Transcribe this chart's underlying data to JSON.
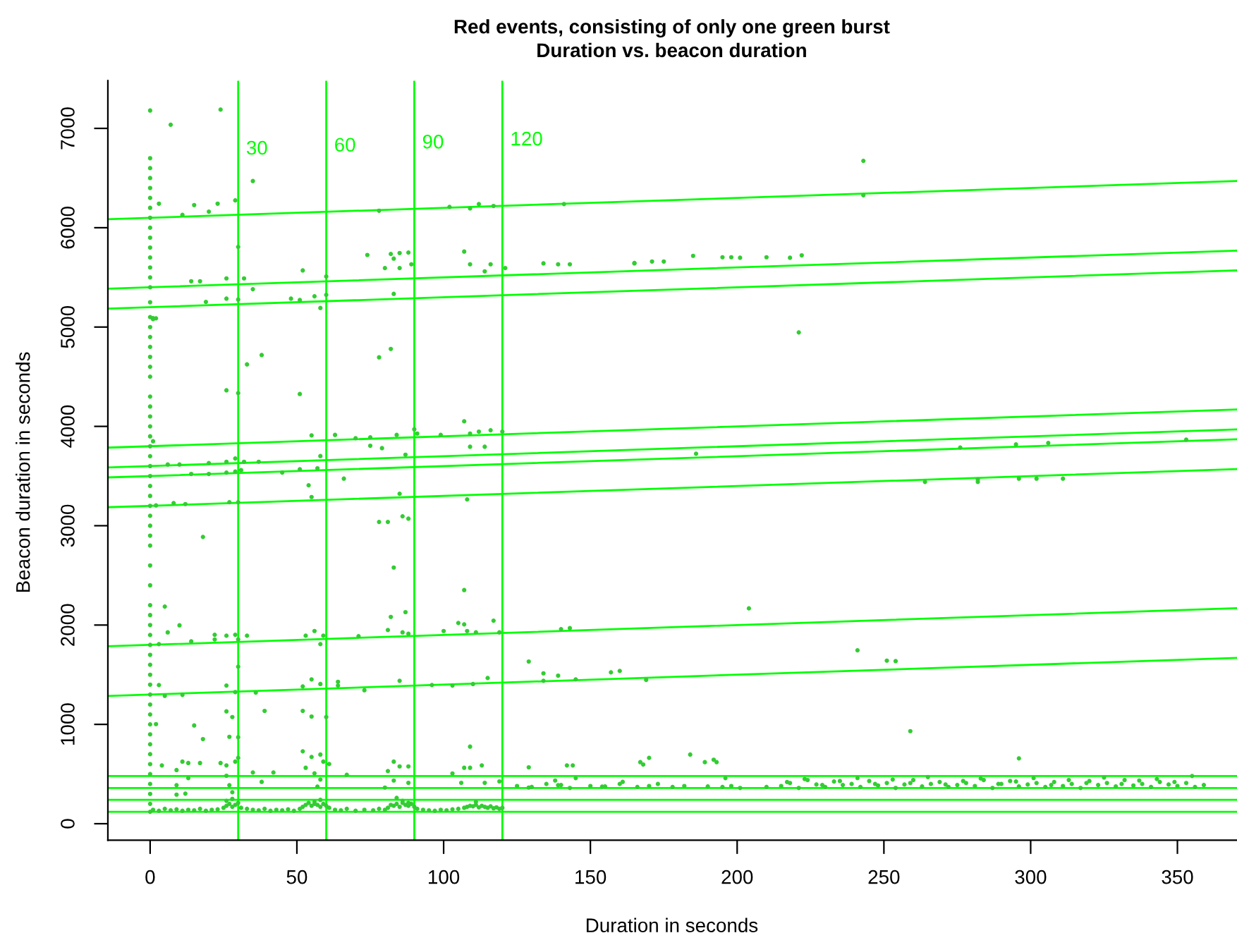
{
  "chart_data": {
    "type": "scatter",
    "title": "Red events, consisting of only one green burst",
    "subtitle": "Duration vs. beacon duration",
    "xlabel": "Duration in seconds",
    "ylabel": "Beacon duration in seconds",
    "xlim": [
      -14.4,
      370.3
    ],
    "ylim": [
      -166,
      7480
    ],
    "xticks": [
      0,
      50,
      100,
      150,
      200,
      250,
      300,
      350
    ],
    "yticks": [
      0,
      1000,
      2000,
      3000,
      4000,
      5000,
      6000,
      7000
    ],
    "grid": false,
    "legend": false,
    "series": [
      {
        "marker": "circle",
        "color": "#33cc33",
        "x": [
          0,
          0,
          0,
          0,
          0,
          0,
          0,
          0,
          0,
          0,
          0,
          0,
          0,
          0,
          0,
          0,
          0,
          0,
          0,
          0,
          0,
          0,
          0,
          0,
          0,
          0,
          0,
          0,
          0,
          0,
          0,
          0,
          0,
          0,
          0,
          0,
          0,
          0,
          0,
          0,
          0,
          0,
          0,
          0,
          0,
          0,
          0,
          0,
          0,
          0,
          0,
          0,
          0,
          0,
          0,
          0,
          0,
          0,
          0,
          0,
          0,
          0,
          0,
          1,
          1,
          1,
          24,
          7,
          35,
          3,
          11,
          15,
          20,
          23,
          29,
          30,
          78,
          102,
          109,
          112,
          117,
          141,
          74,
          82,
          85,
          88,
          83,
          80,
          85,
          89,
          107,
          109,
          116,
          114,
          121,
          134,
          139,
          143,
          165,
          52,
          60,
          14,
          17,
          26,
          32,
          35,
          19,
          26,
          30,
          48,
          51,
          56,
          60,
          58,
          83,
          2,
          38,
          33,
          82,
          78,
          26,
          30,
          51,
          107,
          90,
          55,
          63,
          70,
          75,
          84,
          91,
          99,
          109,
          112,
          116,
          120,
          75,
          79,
          109,
          114,
          87,
          58,
          6,
          10,
          20,
          26,
          29,
          32,
          37,
          14,
          20,
          26,
          29,
          31,
          45,
          51,
          57,
          54,
          66,
          55,
          85,
          108,
          2,
          8,
          12,
          27,
          30,
          243,
          243,
          165,
          171,
          175,
          185,
          195,
          198,
          201,
          210,
          218,
          222,
          221,
          186,
          276,
          295,
          306,
          353,
          264,
          282,
          282,
          296,
          302,
          311,
          18,
          78,
          81,
          86,
          88,
          83,
          107,
          5,
          10,
          6,
          3,
          14,
          22,
          22,
          26,
          29,
          33,
          30,
          53,
          56,
          59,
          58,
          71,
          81,
          86,
          88,
          82,
          87,
          100,
          105,
          107,
          108,
          111,
          117,
          119,
          140,
          143,
          129,
          3,
          5,
          11,
          26,
          29,
          30,
          36,
          52,
          55,
          58,
          64,
          64,
          73,
          85,
          96,
          103,
          110,
          115,
          134,
          134,
          139,
          145,
          157,
          160,
          2,
          15,
          18,
          26,
          28,
          39,
          52,
          55,
          60,
          27,
          30,
          109,
          4,
          11,
          13,
          17,
          24,
          26,
          29,
          30,
          26,
          27,
          28,
          35,
          38,
          42,
          52,
          55,
          58,
          59,
          61,
          53,
          56,
          58,
          57,
          67,
          83,
          81,
          85,
          88,
          83,
          80,
          88,
          103,
          107,
          109,
          106,
          113,
          114,
          119,
          129,
          129,
          142,
          144,
          138,
          139,
          145,
          154,
          161,
          9,
          9,
          13,
          9,
          12,
          204,
          241,
          251,
          254,
          169,
          259,
          167,
          168,
          170,
          184,
          189,
          192,
          193,
          296,
          196,
          1,
          3,
          5,
          7,
          9,
          11,
          13,
          15,
          17,
          19,
          21,
          23,
          25,
          26,
          27,
          28,
          29,
          30,
          31,
          33,
          35,
          37,
          39,
          41,
          43,
          45,
          47,
          49,
          51,
          52,
          53,
          54,
          55,
          56,
          57,
          58,
          59,
          60,
          61,
          63,
          65,
          67,
          70,
          73,
          76,
          78,
          80,
          81,
          82,
          83,
          84,
          85,
          86,
          87,
          88,
          89,
          90,
          91,
          93,
          95,
          97,
          99,
          101,
          103,
          105,
          107,
          108,
          109,
          110,
          111,
          112,
          113,
          114,
          115,
          116,
          117,
          118,
          119,
          120,
          26,
          28,
          56,
          58,
          84,
          86,
          88,
          111,
          125,
          130,
          135,
          140,
          143,
          150,
          155,
          160,
          166,
          170,
          173,
          178,
          182,
          190,
          195,
          198,
          201,
          210,
          215,
          218,
          221,
          224,
          227,
          230,
          233,
          236,
          239,
          242,
          245,
          248,
          251,
          254,
          257,
          260,
          263,
          266,
          269,
          272,
          275,
          278,
          281,
          284,
          287,
          290,
          293,
          296,
          299,
          302,
          305,
          308,
          311,
          314,
          317,
          320,
          323,
          326,
          329,
          332,
          335,
          338,
          341,
          344,
          347,
          350,
          353,
          356,
          359,
          217,
          223,
          229,
          235,
          241,
          247,
          253,
          259,
          265,
          271,
          277,
          283,
          289,
          295,
          301,
          307,
          313,
          319,
          325,
          331,
          337,
          343,
          349,
          355
        ],
        "values": [
          120,
          200,
          300,
          400,
          500,
          600,
          700,
          800,
          900,
          1000,
          1100,
          1200,
          1300,
          1400,
          1500,
          1600,
          1700,
          1800,
          1900,
          2000,
          2100,
          2200,
          2400,
          2600,
          2800,
          2900,
          3000,
          3100,
          3200,
          3300,
          3400,
          3500,
          3600,
          3700,
          3800,
          3900,
          4000,
          4100,
          4200,
          4300,
          4500,
          4600,
          4700,
          4800,
          4900,
          5000,
          5100,
          5250,
          5400,
          5500,
          5600,
          5700,
          5800,
          5900,
          6000,
          6100,
          6200,
          6300,
          6400,
          6500,
          6600,
          6700,
          7180,
          5080,
          5090,
          3850,
          7189,
          7037,
          6470,
          6242,
          6129,
          6228,
          6162,
          6242,
          6275,
          5807,
          6171,
          6209,
          6195,
          6238,
          6219,
          6238,
          5726,
          5736,
          5745,
          5750,
          5689,
          5594,
          5594,
          5632,
          5760,
          5632,
          5632,
          5561,
          5594,
          5641,
          5632,
          5632,
          5641,
          5570,
          5509,
          5461,
          5461,
          5490,
          5490,
          5381,
          5253,
          5286,
          5277,
          5286,
          5272,
          5310,
          5324,
          5192,
          5334,
          5088,
          4718,
          4624,
          4780,
          4695,
          4363,
          4335,
          4326,
          4051,
          3971,
          3909,
          3914,
          3881,
          3890,
          3914,
          3928,
          3914,
          3928,
          3947,
          3961,
          3947,
          3805,
          3781,
          3795,
          3795,
          3715,
          3701,
          3616,
          3616,
          3630,
          3644,
          3677,
          3644,
          3644,
          3521,
          3521,
          3535,
          3545,
          3559,
          3535,
          3568,
          3578,
          3407,
          3474,
          3289,
          3322,
          3265,
          3204,
          3228,
          3218,
          3237,
          3237,
          6673,
          6327,
          5645,
          5660,
          5660,
          5717,
          5703,
          5703,
          5698,
          5703,
          5698,
          5722,
          4946,
          3725,
          3787,
          3819,
          3833,
          3866,
          3441,
          3465,
          3441,
          3474,
          3474,
          3474,
          2887,
          3038,
          3038,
          3095,
          3071,
          2579,
          2352,
          2186,
          1997,
          1926,
          1808,
          1836,
          1902,
          1855,
          1893,
          1902,
          1893,
          1855,
          1893,
          1940,
          1893,
          1808,
          1888,
          1950,
          1926,
          1912,
          2082,
          2130,
          1940,
          2021,
          2007,
          1940,
          1926,
          2044,
          1926,
          1959,
          1969,
          1633,
          1396,
          1287,
          1297,
          1391,
          1325,
          1581,
          1320,
          1382,
          1453,
          1406,
          1429,
          1391,
          1344,
          1439,
          1396,
          1391,
          1406,
          1467,
          1514,
          1439,
          1491,
          1453,
          1524,
          1538,
          1003,
          989,
          852,
          1131,
          1074,
          1136,
          1136,
          1079,
          1074,
          875,
          871,
          776,
          587,
          625,
          611,
          611,
          611,
          587,
          625,
          663,
          483,
          388,
          317,
          516,
          421,
          516,
          729,
          672,
          696,
          625,
          601,
          563,
          507,
          445,
          374,
          492,
          625,
          530,
          577,
          577,
          435,
          364,
          412,
          506,
          563,
          563,
          412,
          587,
          412,
          426,
          568,
          364,
          587,
          587,
          435,
          388,
          459,
          374,
          421,
          540,
          388,
          459,
          293,
          303,
          2168,
          1746,
          1642,
          1637,
          1448,
          932,
          620,
          596,
          663,
          696,
          620,
          644,
          620,
          658,
          459,
          140,
          130,
          150,
          135,
          145,
          130,
          140,
          135,
          150,
          130,
          140,
          145,
          160,
          180,
          200,
          170,
          190,
          210,
          160,
          150,
          140,
          135,
          150,
          130,
          140,
          135,
          145,
          130,
          150,
          170,
          190,
          210,
          180,
          200,
          190,
          170,
          200,
          180,
          160,
          140,
          135,
          150,
          130,
          140,
          135,
          150,
          140,
          160,
          190,
          180,
          200,
          170,
          210,
          190,
          180,
          200,
          170,
          150,
          140,
          135,
          130,
          140,
          135,
          145,
          150,
          160,
          170,
          180,
          175,
          190,
          165,
          180,
          170,
          160,
          175,
          155,
          165,
          150,
          160,
          230,
          250,
          220,
          240,
          260,
          230,
          210,
          220,
          380,
          370,
          400,
          390,
          360,
          380,
          375,
          400,
          370,
          380,
          400,
          370,
          380,
          375,
          370,
          380,
          360,
          370,
          380,
          410,
          360,
          440,
          395,
          370,
          425,
          390,
          400,
          370,
          430,
          385,
          410,
          360,
          395,
          440,
          375,
          400,
          420,
          370,
          390,
          410,
          380,
          440,
          360,
          400,
          430,
          375,
          395,
          410,
          370,
          420,
          380,
          400,
          360,
          430,
          390,
          410,
          375,
          440,
          385,
          400,
          370,
          420,
          395,
          380,
          410,
          370,
          390,
          420,
          450,
          390,
          430,
          460,
          400,
          445,
          410,
          470,
          395,
          430,
          455,
          400,
          425,
          460,
          390,
          440,
          410,
          465,
          400,
          435,
          450,
          420,
          480
        ]
      },
      {
        "type": "line",
        "color": "#00ff00",
        "x": [
          -14.4,
          370.3
        ],
        "values": [
          6086,
          6470
        ]
      },
      {
        "type": "line",
        "color": "#00ff00",
        "x": [
          -14.4,
          370.3
        ],
        "values": [
          5386,
          5770
        ]
      },
      {
        "type": "line",
        "color": "#00ff00",
        "x": [
          -14.4,
          370.3
        ],
        "values": [
          5186,
          5570
        ]
      },
      {
        "type": "line",
        "color": "#00ff00",
        "x": [
          -14.4,
          370.3
        ],
        "values": [
          3786,
          4170
        ]
      },
      {
        "type": "line",
        "color": "#00ff00",
        "x": [
          -14.4,
          370.3
        ],
        "values": [
          3586,
          3970
        ]
      },
      {
        "type": "line",
        "color": "#00ff00",
        "x": [
          -14.4,
          370.3
        ],
        "values": [
          3486,
          3870
        ]
      },
      {
        "type": "line",
        "color": "#00ff00",
        "x": [
          -14.4,
          370.3
        ],
        "values": [
          3186,
          3570
        ]
      },
      {
        "type": "line",
        "color": "#00ff00",
        "x": [
          -14.4,
          370.3
        ],
        "values": [
          1786,
          2170
        ]
      },
      {
        "type": "line",
        "color": "#00ff00",
        "x": [
          -14.4,
          370.3
        ],
        "values": [
          1286,
          1670
        ]
      }
    ],
    "ref_lines": [
      {
        "axis": "x",
        "value": 30,
        "label": "30",
        "color": "#00ff00"
      },
      {
        "axis": "x",
        "value": 60,
        "label": "60",
        "color": "#00ff00"
      },
      {
        "axis": "x",
        "value": 90,
        "label": "90",
        "color": "#00ff00"
      },
      {
        "axis": "x",
        "value": 120,
        "label": "120",
        "color": "#00ff00"
      },
      {
        "axis": "y",
        "value": 120,
        "color": "#00ff00"
      },
      {
        "axis": "y",
        "value": 240,
        "color": "#00ff00"
      },
      {
        "axis": "y",
        "value": 360,
        "color": "#00ff00"
      },
      {
        "axis": "y",
        "value": 480,
        "color": "#00ff00"
      }
    ]
  }
}
